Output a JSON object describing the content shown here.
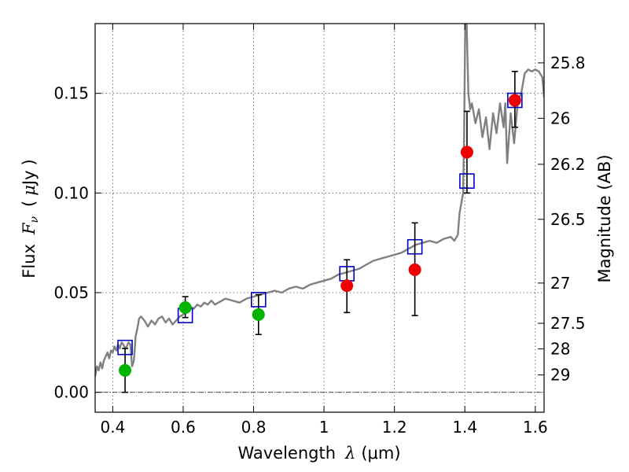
{
  "chart_data": {
    "type": "scatter",
    "xlabel": "Wavelength  λ (μm)",
    "xlabel_parts": {
      "word": "Wavelength",
      "symbol": "λ",
      "unit": "(μm)"
    },
    "ylabel": "Flux  F_ν  ( μJy )",
    "ylabel_parts": {
      "word": "Flux",
      "symbol": "F",
      "subscript": "ν",
      "unit_open": "(",
      "unit_mu": "μ",
      "unit_rest": "Jy",
      "unit_close": ")"
    },
    "y2label": "Magnitude (AB)",
    "xlim": [
      0.35,
      1.625
    ],
    "ylim": [
      -0.01,
      0.185
    ],
    "grid": true,
    "x_ticks": [
      0.4,
      0.6,
      0.8,
      1.0,
      1.2,
      1.4,
      1.6
    ],
    "x_tick_labels": [
      "0.4",
      "0.6",
      "0.8",
      "1",
      "1.2",
      "1.4",
      "1.6"
    ],
    "y_ticks": [
      0.0,
      0.05,
      0.1,
      0.15
    ],
    "y_tick_labels": [
      "0.00",
      "0.05",
      "0.10",
      "0.15"
    ],
    "zero_line": 0.0,
    "y2_ticks": [
      {
        "label": "25.8",
        "flux": 0.1653
      },
      {
        "label": "26",
        "flux": 0.1375
      },
      {
        "label": "26.2",
        "flux": 0.1144
      },
      {
        "label": "26.5",
        "flux": 0.0868
      },
      {
        "label": "27",
        "flux": 0.0548
      },
      {
        "label": "27.5",
        "flux": 0.0346
      },
      {
        "label": "28",
        "flux": 0.0218
      },
      {
        "label": "29",
        "flux": 0.0087
      }
    ],
    "colors": {
      "model": "#808080",
      "model_points": "#0000cc",
      "optical": "#00b400",
      "infrared": "#ee0000",
      "errorbar": "#000000",
      "grid": "#555555"
    },
    "model_spectrum": {
      "x": [
        0.35,
        0.355,
        0.36,
        0.365,
        0.37,
        0.375,
        0.38,
        0.385,
        0.39,
        0.395,
        0.4,
        0.405,
        0.41,
        0.415,
        0.42,
        0.425,
        0.43,
        0.435,
        0.44,
        0.445,
        0.45,
        0.455,
        0.46,
        0.465,
        0.47,
        0.475,
        0.48,
        0.49,
        0.5,
        0.51,
        0.52,
        0.53,
        0.54,
        0.55,
        0.56,
        0.57,
        0.58,
        0.59,
        0.6,
        0.61,
        0.62,
        0.63,
        0.64,
        0.65,
        0.66,
        0.67,
        0.68,
        0.69,
        0.7,
        0.72,
        0.74,
        0.76,
        0.78,
        0.8,
        0.82,
        0.84,
        0.86,
        0.88,
        0.9,
        0.92,
        0.94,
        0.96,
        0.98,
        1.0,
        1.02,
        1.04,
        1.06,
        1.08,
        1.1,
        1.12,
        1.14,
        1.16,
        1.18,
        1.2,
        1.22,
        1.24,
        1.26,
        1.28,
        1.3,
        1.32,
        1.34,
        1.36,
        1.37,
        1.38,
        1.385,
        1.39,
        1.395,
        1.398,
        1.401,
        1.405,
        1.41,
        1.415,
        1.42,
        1.43,
        1.44,
        1.45,
        1.46,
        1.47,
        1.48,
        1.49,
        1.5,
        1.51,
        1.515,
        1.52,
        1.53,
        1.54,
        1.55,
        1.56,
        1.57,
        1.58,
        1.59,
        1.6,
        1.61,
        1.62,
        1.625
      ],
      "y": [
        0.008,
        0.013,
        0.011,
        0.015,
        0.012,
        0.016,
        0.018,
        0.02,
        0.017,
        0.021,
        0.02,
        0.023,
        0.021,
        0.024,
        0.022,
        0.025,
        0.024,
        0.022,
        0.023,
        0.025,
        0.024,
        0.013,
        0.016,
        0.028,
        0.032,
        0.037,
        0.038,
        0.036,
        0.033,
        0.036,
        0.034,
        0.037,
        0.038,
        0.035,
        0.037,
        0.034,
        0.036,
        0.038,
        0.039,
        0.041,
        0.043,
        0.042,
        0.044,
        0.043,
        0.045,
        0.044,
        0.046,
        0.044,
        0.045,
        0.047,
        0.046,
        0.045,
        0.047,
        0.048,
        0.049,
        0.05,
        0.051,
        0.05,
        0.052,
        0.053,
        0.052,
        0.054,
        0.055,
        0.056,
        0.057,
        0.059,
        0.06,
        0.061,
        0.062,
        0.064,
        0.066,
        0.067,
        0.068,
        0.069,
        0.07,
        0.072,
        0.074,
        0.075,
        0.076,
        0.075,
        0.077,
        0.078,
        0.076,
        0.079,
        0.09,
        0.095,
        0.1,
        0.13,
        0.185,
        0.185,
        0.15,
        0.142,
        0.145,
        0.135,
        0.142,
        0.128,
        0.138,
        0.122,
        0.14,
        0.13,
        0.145,
        0.133,
        0.145,
        0.115,
        0.14,
        0.125,
        0.145,
        0.15,
        0.16,
        0.162,
        0.161,
        0.162,
        0.161,
        0.158,
        0.148
      ]
    },
    "series": [
      {
        "marker": "open-square",
        "color": "#0000cc",
        "x": [
          0.435,
          0.606,
          0.814,
          1.065,
          1.258,
          1.406,
          1.542
        ],
        "y": [
          0.0225,
          0.0385,
          0.0465,
          0.0595,
          0.073,
          0.106,
          0.1465
        ]
      },
      {
        "marker": "circle",
        "color": "#00b400",
        "x": [
          0.435,
          0.606,
          0.814
        ],
        "y": [
          0.011,
          0.0425,
          0.039
        ],
        "yerr_low": [
          0.0,
          0.0375,
          0.029
        ],
        "yerr_high": [
          0.022,
          0.048,
          0.049
        ]
      },
      {
        "marker": "circle",
        "color": "#ee0000",
        "x": [
          1.065,
          1.258,
          1.406,
          1.542
        ],
        "y": [
          0.0535,
          0.0615,
          0.1205,
          0.1465
        ],
        "yerr_low": [
          0.04,
          0.0385,
          0.1,
          0.133
        ],
        "yerr_high": [
          0.0665,
          0.085,
          0.141,
          0.161
        ]
      }
    ]
  }
}
